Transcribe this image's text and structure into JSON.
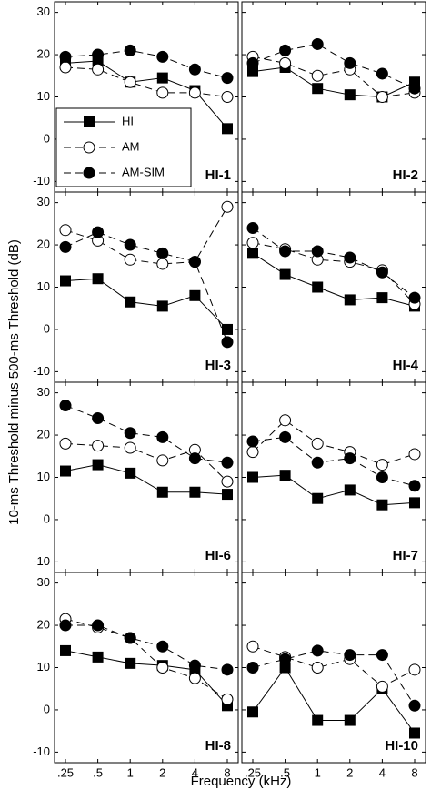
{
  "ylabel": "10-ms Threshold minus 500-ms Threshold (dB)",
  "xlabel": "Frequency (kHz)",
  "categories": [
    ".25",
    ".5",
    "1",
    "2",
    "4",
    "8"
  ],
  "ylim": [
    -12.5,
    32.5
  ],
  "yticks": [
    -10,
    0,
    10,
    20,
    30
  ],
  "chart_data": [
    {
      "type": "line",
      "title": "HI-1",
      "legend": "lower-left",
      "series": [
        {
          "name": "HI",
          "marker": "square",
          "line": "solid",
          "color": "#000000",
          "values": [
            18,
            18.5,
            13.5,
            14.5,
            11.5,
            2.5
          ]
        },
        {
          "name": "AM",
          "marker": "open-circle",
          "line": "dashed",
          "color": "#000000",
          "values": [
            17,
            16.5,
            13.5,
            11,
            11,
            10
          ]
        },
        {
          "name": "AM-SIM",
          "marker": "filled-circle",
          "line": "dashed",
          "color": "#000000",
          "values": [
            19.5,
            20,
            21,
            19.5,
            16.5,
            14.5
          ]
        }
      ]
    },
    {
      "type": "line",
      "title": "HI-2",
      "series": [
        {
          "name": "HI",
          "marker": "square",
          "line": "solid",
          "color": "#000000",
          "values": [
            16,
            17,
            12,
            10.5,
            10,
            13.5
          ]
        },
        {
          "name": "AM",
          "marker": "open-circle",
          "line": "dashed",
          "color": "#000000",
          "values": [
            19.5,
            18,
            15,
            16.5,
            10,
            11
          ]
        },
        {
          "name": "AM-SIM",
          "marker": "filled-circle",
          "line": "dashed",
          "color": "#000000",
          "values": [
            18,
            21,
            22.5,
            18,
            15.5,
            12
          ]
        }
      ]
    },
    {
      "type": "line",
      "title": "HI-3",
      "series": [
        {
          "name": "HI",
          "marker": "square",
          "line": "solid",
          "color": "#000000",
          "values": [
            11.5,
            12,
            6.5,
            5.5,
            8,
            0
          ]
        },
        {
          "name": "AM",
          "marker": "open-circle",
          "line": "dashed",
          "color": "#000000",
          "values": [
            23.5,
            21,
            16.5,
            15.5,
            16,
            29
          ]
        },
        {
          "name": "AM-SIM",
          "marker": "filled-circle",
          "line": "dashed",
          "color": "#000000",
          "values": [
            19.5,
            23,
            20,
            18,
            16,
            -3
          ]
        }
      ]
    },
    {
      "type": "line",
      "title": "HI-4",
      "series": [
        {
          "name": "HI",
          "marker": "square",
          "line": "solid",
          "color": "#000000",
          "values": [
            18,
            13,
            10,
            7,
            7.5,
            5.5
          ]
        },
        {
          "name": "AM",
          "marker": "open-circle",
          "line": "dashed",
          "color": "#000000",
          "values": [
            20.5,
            19,
            16.5,
            16,
            14,
            6
          ]
        },
        {
          "name": "AM-SIM",
          "marker": "filled-circle",
          "line": "dashed",
          "color": "#000000",
          "values": [
            24,
            18.5,
            18.5,
            17,
            13.5,
            7.5
          ]
        }
      ]
    },
    {
      "type": "line",
      "title": "HI-6",
      "series": [
        {
          "name": "HI",
          "marker": "square",
          "line": "solid",
          "color": "#000000",
          "values": [
            11.5,
            13,
            11,
            6.5,
            6.5,
            6
          ]
        },
        {
          "name": "AM",
          "marker": "open-circle",
          "line": "dashed",
          "color": "#000000",
          "values": [
            18,
            17.5,
            17,
            14,
            16.5,
            9
          ]
        },
        {
          "name": "AM-SIM",
          "marker": "filled-circle",
          "line": "dashed",
          "color": "#000000",
          "values": [
            27,
            24,
            20.5,
            19.5,
            14.5,
            13.5
          ]
        }
      ]
    },
    {
      "type": "line",
      "title": "HI-7",
      "series": [
        {
          "name": "HI",
          "marker": "square",
          "line": "solid",
          "color": "#000000",
          "values": [
            10,
            10.5,
            5,
            7,
            3.5,
            4
          ]
        },
        {
          "name": "AM",
          "marker": "open-circle",
          "line": "dashed",
          "color": "#000000",
          "values": [
            16,
            23.5,
            18,
            16,
            13,
            15.5
          ]
        },
        {
          "name": "AM-SIM",
          "marker": "filled-circle",
          "line": "dashed",
          "color": "#000000",
          "values": [
            18.5,
            19.5,
            13.5,
            14.5,
            10,
            8
          ]
        }
      ]
    },
    {
      "type": "line",
      "title": "HI-8",
      "series": [
        {
          "name": "HI",
          "marker": "square",
          "line": "solid",
          "color": "#000000",
          "values": [
            14,
            12.5,
            11,
            10.5,
            9.5,
            1
          ]
        },
        {
          "name": "AM",
          "marker": "open-circle",
          "line": "dashed",
          "color": "#000000",
          "values": [
            21.5,
            19.5,
            17,
            10,
            7.5,
            2.5
          ]
        },
        {
          "name": "AM-SIM",
          "marker": "filled-circle",
          "line": "dashed",
          "color": "#000000",
          "values": [
            20,
            20,
            17,
            15,
            10.5,
            9.5
          ]
        }
      ]
    },
    {
      "type": "line",
      "title": "HI-10",
      "series": [
        {
          "name": "HI",
          "marker": "square",
          "line": "solid",
          "color": "#000000",
          "values": [
            -0.5,
            10,
            -2.5,
            -2.5,
            5,
            -5.5
          ]
        },
        {
          "name": "AM",
          "marker": "open-circle",
          "line": "dashed",
          "color": "#000000",
          "values": [
            15,
            12.5,
            10,
            12,
            5.5,
            9.5
          ]
        },
        {
          "name": "AM-SIM",
          "marker": "filled-circle",
          "line": "dashed",
          "color": "#000000",
          "values": [
            10,
            12,
            14,
            13,
            13,
            1
          ]
        }
      ]
    }
  ]
}
